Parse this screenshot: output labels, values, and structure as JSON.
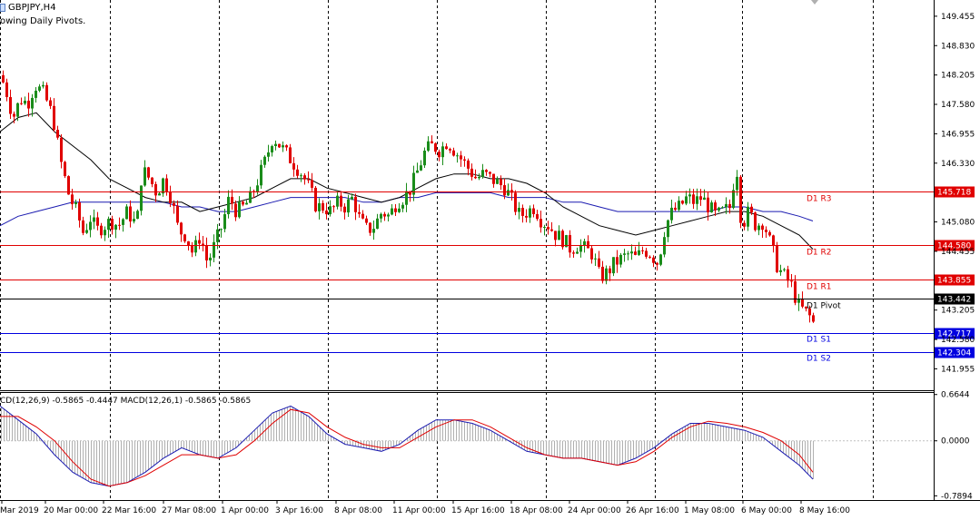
{
  "header": {
    "symbol": "GBPJPY,H4",
    "indicator": "owing Daily Pivots."
  },
  "chart_data": {
    "type": "candlestick",
    "price_axis": {
      "ylim": [
        141.5,
        149.8
      ],
      "ticks": [
        "149.455",
        "148.830",
        "148.205",
        "147.580",
        "146.955",
        "146.330",
        "145.080",
        "144.455",
        "143.205",
        "142.580",
        "141.955"
      ]
    },
    "macd_axis": {
      "ylim": [
        -0.85,
        0.7
      ],
      "ticks": [
        "0.6644",
        "0.0000",
        "-0.7894"
      ]
    },
    "time_labels": [
      "Mar 2019",
      "20 Mar 00:00",
      "22 Mar 16:00",
      "27 Mar 08:00",
      "1 Apr 00:00",
      "3 Apr 16:00",
      "8 Apr 08:00",
      "11 Apr 00:00",
      "15 Apr 16:00",
      "18 Apr 08:00",
      "24 Apr 00:00",
      "26 Apr 16:00",
      "1 May 08:00",
      "6 May 00:00",
      "8 May 16:00"
    ],
    "pivots": [
      {
        "name": "D1 R3",
        "value": 145.718,
        "price_label": "145.718",
        "color": "#e00000"
      },
      {
        "name": "D1 R2",
        "value": 144.58,
        "price_label": "144.580",
        "color": "#e00000"
      },
      {
        "name": "D1 R1",
        "value": 143.855,
        "price_label": "143.855",
        "color": "#e00000"
      },
      {
        "name": "D1 Pivot",
        "value": 143.442,
        "price_label": "143.442",
        "color": "#000000"
      },
      {
        "name": "D1 S1",
        "value": 142.717,
        "price_label": "142.717",
        "color": "#0000e0"
      },
      {
        "name": "D1 S2",
        "value": 142.304,
        "price_label": "142.304",
        "color": "#0000e0"
      }
    ],
    "macd_label": "CD(12,26,9) -0.5865 -0.4447 MACD(12,26,1) -0.5865 -0.5865",
    "close_path": [
      [
        0,
        148.2
      ],
      [
        6,
        147.9
      ],
      [
        14,
        147.3
      ],
      [
        22,
        147.7
      ],
      [
        30,
        147.6
      ],
      [
        38,
        148.0
      ],
      [
        48,
        147.8
      ],
      [
        58,
        147.3
      ],
      [
        66,
        146.4
      ],
      [
        76,
        145.6
      ],
      [
        84,
        145.3
      ],
      [
        92,
        144.8
      ],
      [
        98,
        145.2
      ],
      [
        106,
        144.9
      ],
      [
        114,
        145.0
      ],
      [
        122,
        145.1
      ],
      [
        130,
        145.0
      ],
      [
        140,
        145.3
      ],
      [
        150,
        145.0
      ],
      [
        156,
        146.2
      ],
      [
        164,
        146.0
      ],
      [
        172,
        145.7
      ],
      [
        180,
        146.0
      ],
      [
        188,
        145.6
      ],
      [
        196,
        144.9
      ],
      [
        204,
        144.8
      ],
      [
        212,
        144.4
      ],
      [
        220,
        144.8
      ],
      [
        228,
        144.2
      ],
      [
        236,
        144.6
      ],
      [
        244,
        145.0
      ],
      [
        252,
        145.6
      ],
      [
        260,
        145.3
      ],
      [
        268,
        145.4
      ],
      [
        276,
        145.6
      ],
      [
        284,
        146.0
      ],
      [
        292,
        146.4
      ],
      [
        300,
        146.9
      ],
      [
        308,
        146.7
      ],
      [
        316,
        146.5
      ],
      [
        324,
        146.3
      ],
      [
        332,
        146.1
      ],
      [
        340,
        145.8
      ],
      [
        348,
        145.4
      ],
      [
        356,
        145.4
      ],
      [
        364,
        145.3
      ],
      [
        372,
        145.5
      ],
      [
        380,
        145.4
      ],
      [
        388,
        145.6
      ],
      [
        396,
        145.1
      ],
      [
        404,
        144.9
      ],
      [
        412,
        145.0
      ],
      [
        420,
        145.3
      ],
      [
        428,
        145.2
      ],
      [
        436,
        145.5
      ],
      [
        444,
        145.6
      ],
      [
        452,
        145.8
      ],
      [
        460,
        146.2
      ],
      [
        468,
        146.6
      ],
      [
        476,
        146.7
      ],
      [
        484,
        146.6
      ],
      [
        492,
        146.8
      ],
      [
        500,
        146.6
      ],
      [
        508,
        146.4
      ],
      [
        516,
        146.2
      ],
      [
        524,
        146.0
      ],
      [
        532,
        146.1
      ],
      [
        540,
        146.0
      ],
      [
        548,
        145.9
      ],
      [
        556,
        145.8
      ],
      [
        564,
        145.5
      ],
      [
        572,
        145.2
      ],
      [
        580,
        145.3
      ],
      [
        588,
        145.4
      ],
      [
        596,
        145.1
      ],
      [
        604,
        145.0
      ],
      [
        612,
        144.8
      ],
      [
        620,
        144.7
      ],
      [
        628,
        144.5
      ],
      [
        636,
        144.6
      ],
      [
        644,
        144.5
      ],
      [
        652,
        144.4
      ],
      [
        660,
        143.9
      ],
      [
        668,
        144.0
      ],
      [
        676,
        144.2
      ],
      [
        684,
        144.3
      ],
      [
        692,
        144.4
      ],
      [
        700,
        144.3
      ],
      [
        708,
        144.5
      ],
      [
        716,
        144.4
      ],
      [
        724,
        144.2
      ],
      [
        732,
        145.0
      ],
      [
        740,
        145.3
      ],
      [
        748,
        145.4
      ],
      [
        756,
        145.6
      ],
      [
        764,
        145.5
      ],
      [
        772,
        145.6
      ],
      [
        780,
        145.4
      ],
      [
        788,
        145.2
      ],
      [
        796,
        145.3
      ],
      [
        804,
        145.4
      ],
      [
        810,
        146.4
      ],
      [
        816,
        145.0
      ],
      [
        824,
        145.3
      ],
      [
        832,
        145.0
      ],
      [
        840,
        145.1
      ],
      [
        848,
        144.6
      ],
      [
        856,
        144.1
      ],
      [
        864,
        143.9
      ],
      [
        872,
        143.7
      ],
      [
        878,
        143.3
      ],
      [
        884,
        143.2
      ],
      [
        890,
        143.1
      ],
      [
        896,
        142.9
      ]
    ],
    "ma_fast": [
      [
        0,
        147.0
      ],
      [
        20,
        147.3
      ],
      [
        40,
        147.4
      ],
      [
        60,
        147.0
      ],
      [
        80,
        146.7
      ],
      [
        100,
        146.4
      ],
      [
        120,
        146.0
      ],
      [
        140,
        145.8
      ],
      [
        160,
        145.6
      ],
      [
        180,
        145.5
      ],
      [
        200,
        145.5
      ],
      [
        220,
        145.3
      ],
      [
        240,
        145.4
      ],
      [
        260,
        145.5
      ],
      [
        280,
        145.6
      ],
      [
        300,
        145.8
      ],
      [
        320,
        146.0
      ],
      [
        340,
        146.0
      ],
      [
        360,
        145.8
      ],
      [
        380,
        145.7
      ],
      [
        400,
        145.6
      ],
      [
        420,
        145.5
      ],
      [
        440,
        145.6
      ],
      [
        460,
        145.8
      ],
      [
        480,
        146.0
      ],
      [
        500,
        146.1
      ],
      [
        520,
        146.1
      ],
      [
        540,
        146.0
      ],
      [
        560,
        146.0
      ],
      [
        580,
        145.9
      ],
      [
        600,
        145.7
      ],
      [
        620,
        145.4
      ],
      [
        640,
        145.2
      ],
      [
        660,
        145.0
      ],
      [
        680,
        144.9
      ],
      [
        700,
        144.8
      ],
      [
        720,
        144.9
      ],
      [
        740,
        145.0
      ],
      [
        760,
        145.1
      ],
      [
        780,
        145.2
      ],
      [
        800,
        145.3
      ],
      [
        820,
        145.3
      ],
      [
        840,
        145.2
      ],
      [
        860,
        145.0
      ],
      [
        880,
        144.8
      ],
      [
        895,
        144.5
      ]
    ],
    "ma_slow": [
      [
        0,
        145.0
      ],
      [
        20,
        145.2
      ],
      [
        40,
        145.3
      ],
      [
        60,
        145.4
      ],
      [
        80,
        145.5
      ],
      [
        100,
        145.5
      ],
      [
        120,
        145.5
      ],
      [
        140,
        145.5
      ],
      [
        160,
        145.5
      ],
      [
        180,
        145.5
      ],
      [
        200,
        145.4
      ],
      [
        220,
        145.4
      ],
      [
        240,
        145.3
      ],
      [
        260,
        145.3
      ],
      [
        280,
        145.4
      ],
      [
        300,
        145.5
      ],
      [
        320,
        145.6
      ],
      [
        340,
        145.6
      ],
      [
        360,
        145.6
      ],
      [
        380,
        145.6
      ],
      [
        400,
        145.5
      ],
      [
        420,
        145.5
      ],
      [
        440,
        145.6
      ],
      [
        460,
        145.6
      ],
      [
        480,
        145.7
      ],
      [
        500,
        145.7
      ],
      [
        520,
        145.7
      ],
      [
        540,
        145.7
      ],
      [
        560,
        145.6
      ],
      [
        580,
        145.6
      ],
      [
        600,
        145.6
      ],
      [
        620,
        145.5
      ],
      [
        640,
        145.5
      ],
      [
        660,
        145.4
      ],
      [
        680,
        145.3
      ],
      [
        700,
        145.3
      ],
      [
        720,
        145.3
      ],
      [
        740,
        145.3
      ],
      [
        760,
        145.3
      ],
      [
        780,
        145.3
      ],
      [
        800,
        145.4
      ],
      [
        820,
        145.4
      ],
      [
        840,
        145.3
      ],
      [
        860,
        145.3
      ],
      [
        880,
        145.2
      ],
      [
        895,
        145.1
      ]
    ],
    "macd_main": [
      [
        0,
        0.5
      ],
      [
        20,
        0.3
      ],
      [
        40,
        0.1
      ],
      [
        60,
        -0.2
      ],
      [
        80,
        -0.45
      ],
      [
        100,
        -0.6
      ],
      [
        120,
        -0.65
      ],
      [
        140,
        -0.6
      ],
      [
        160,
        -0.45
      ],
      [
        180,
        -0.25
      ],
      [
        200,
        -0.1
      ],
      [
        220,
        -0.2
      ],
      [
        240,
        -0.25
      ],
      [
        260,
        -0.1
      ],
      [
        280,
        0.15
      ],
      [
        300,
        0.4
      ],
      [
        320,
        0.5
      ],
      [
        340,
        0.35
      ],
      [
        360,
        0.1
      ],
      [
        380,
        -0.05
      ],
      [
        400,
        -0.1
      ],
      [
        420,
        -0.15
      ],
      [
        440,
        -0.05
      ],
      [
        460,
        0.15
      ],
      [
        480,
        0.3
      ],
      [
        500,
        0.3
      ],
      [
        520,
        0.25
      ],
      [
        540,
        0.15
      ],
      [
        560,
        0.0
      ],
      [
        580,
        -0.15
      ],
      [
        600,
        -0.2
      ],
      [
        620,
        -0.25
      ],
      [
        640,
        -0.25
      ],
      [
        660,
        -0.3
      ],
      [
        680,
        -0.35
      ],
      [
        700,
        -0.25
      ],
      [
        720,
        -0.1
      ],
      [
        740,
        0.1
      ],
      [
        760,
        0.25
      ],
      [
        780,
        0.25
      ],
      [
        800,
        0.2
      ],
      [
        820,
        0.15
      ],
      [
        840,
        0.05
      ],
      [
        860,
        -0.15
      ],
      [
        880,
        -0.35
      ],
      [
        895,
        -0.55
      ]
    ],
    "macd_signal": [
      [
        0,
        0.35
      ],
      [
        20,
        0.35
      ],
      [
        40,
        0.2
      ],
      [
        60,
        0.0
      ],
      [
        80,
        -0.3
      ],
      [
        100,
        -0.55
      ],
      [
        120,
        -0.65
      ],
      [
        140,
        -0.6
      ],
      [
        160,
        -0.5
      ],
      [
        180,
        -0.35
      ],
      [
        200,
        -0.2
      ],
      [
        220,
        -0.2
      ],
      [
        240,
        -0.25
      ],
      [
        260,
        -0.2
      ],
      [
        280,
        0.0
      ],
      [
        300,
        0.25
      ],
      [
        320,
        0.45
      ],
      [
        340,
        0.4
      ],
      [
        360,
        0.2
      ],
      [
        380,
        0.05
      ],
      [
        400,
        -0.05
      ],
      [
        420,
        -0.1
      ],
      [
        440,
        -0.1
      ],
      [
        460,
        0.05
      ],
      [
        480,
        0.2
      ],
      [
        500,
        0.3
      ],
      [
        520,
        0.3
      ],
      [
        540,
        0.2
      ],
      [
        560,
        0.05
      ],
      [
        580,
        -0.1
      ],
      [
        600,
        -0.2
      ],
      [
        620,
        -0.25
      ],
      [
        640,
        -0.25
      ],
      [
        660,
        -0.3
      ],
      [
        680,
        -0.35
      ],
      [
        700,
        -0.3
      ],
      [
        720,
        -0.15
      ],
      [
        740,
        0.05
      ],
      [
        760,
        0.2
      ],
      [
        780,
        0.28
      ],
      [
        800,
        0.25
      ],
      [
        820,
        0.2
      ],
      [
        840,
        0.12
      ],
      [
        860,
        0.0
      ],
      [
        880,
        -0.2
      ],
      [
        895,
        -0.45
      ]
    ],
    "colors": {
      "bull": "#1a8c1a",
      "bear": "#e00000",
      "ma_fast": "#000000",
      "ma_slow": "#1a1ab0",
      "macd_main": "#1a1ab0",
      "macd_signal": "#e00000",
      "hist": "#b0b0b0",
      "grid": "#000000"
    }
  }
}
